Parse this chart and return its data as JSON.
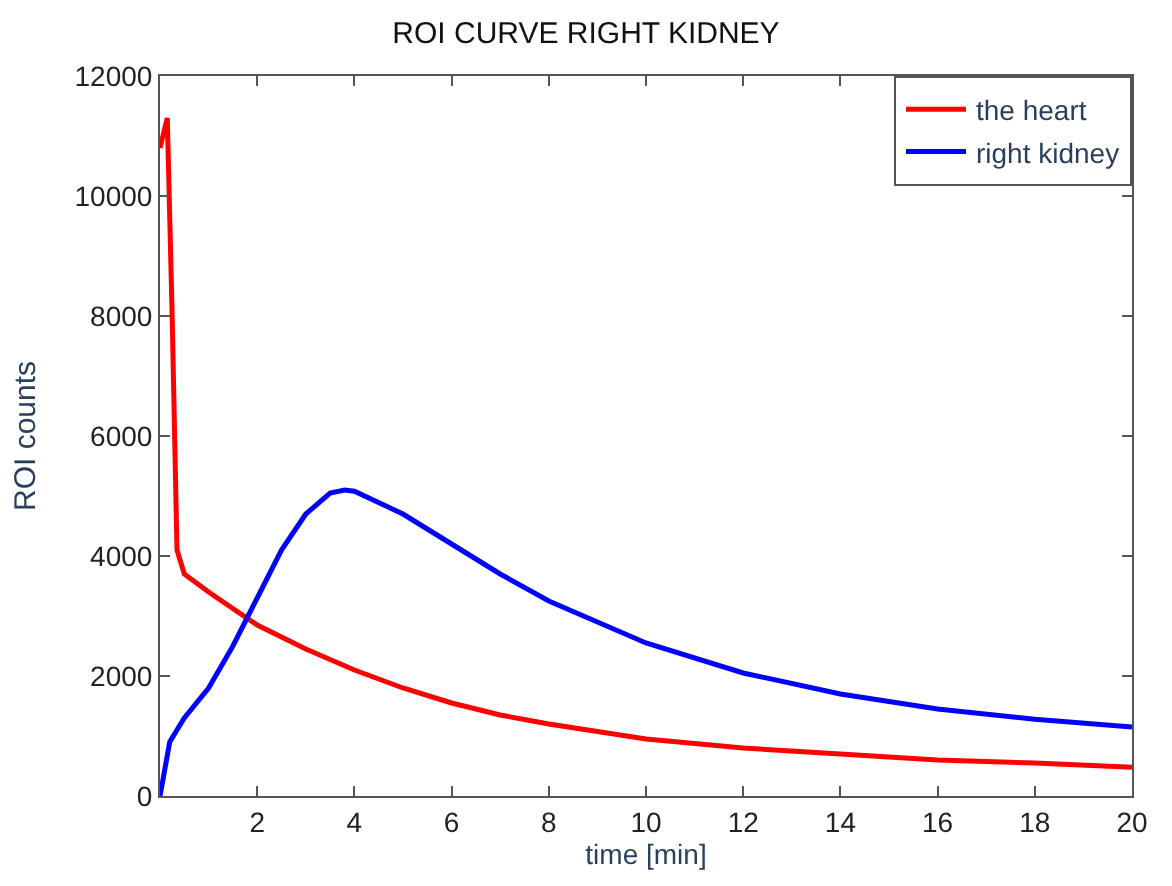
{
  "chart_data": {
    "type": "line",
    "title": "ROI CURVE RIGHT KIDNEY",
    "xlabel": "time [min]",
    "ylabel": "ROI counts",
    "xlim": [
      0,
      20
    ],
    "ylim": [
      0,
      12000
    ],
    "xticks": [
      2,
      4,
      6,
      8,
      10,
      12,
      14,
      16,
      18,
      20
    ],
    "yticks": [
      0,
      2000,
      4000,
      6000,
      8000,
      10000,
      12000
    ],
    "legend": "top right",
    "marker": "none",
    "line_style": "solid",
    "series": [
      {
        "name": "the heart",
        "color": "#ff0000",
        "x": [
          0,
          0.15,
          0.25,
          0.35,
          0.5,
          1,
          2,
          3,
          4,
          5,
          6,
          7,
          8,
          10,
          12,
          14,
          16,
          18,
          20
        ],
        "values": [
          10800,
          11300,
          8000,
          4100,
          3700,
          3400,
          2850,
          2450,
          2100,
          1800,
          1550,
          1350,
          1200,
          950,
          800,
          700,
          600,
          550,
          480
        ]
      },
      {
        "name": "right kidney",
        "color": "#0000ff",
        "x": [
          0,
          0.2,
          0.5,
          1,
          1.5,
          2,
          2.5,
          3,
          3.5,
          3.8,
          4,
          5,
          6,
          7,
          8,
          10,
          12,
          14,
          16,
          18,
          20
        ],
        "values": [
          0,
          900,
          1300,
          1800,
          2500,
          3300,
          4100,
          4700,
          5050,
          5100,
          5080,
          4700,
          4200,
          3700,
          3250,
          2550,
          2050,
          1700,
          1450,
          1280,
          1150
        ]
      }
    ]
  }
}
